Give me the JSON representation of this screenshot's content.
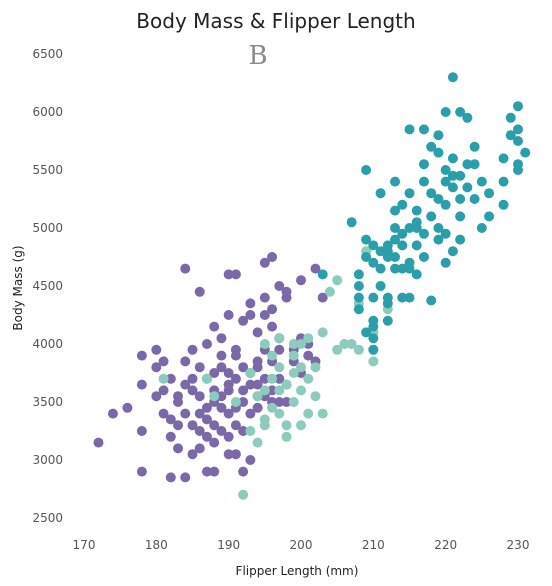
{
  "chart_data": {
    "type": "scatter",
    "title": "Body Mass & Flipper Length",
    "panel_label": "B",
    "xlabel": "Flipper Length (mm)",
    "ylabel": "Body Mass (g)",
    "xlim": [
      167,
      232
    ],
    "ylim": [
      2450,
      6550
    ],
    "xticks": [
      "170",
      "180",
      "190",
      "200",
      "210",
      "220",
      "230"
    ],
    "yticks": [
      "2500",
      "3000",
      "3500",
      "4000",
      "4500",
      "5000",
      "5500",
      "6000",
      "6500"
    ],
    "grid": false,
    "legend": "none",
    "series": [
      {
        "color": "#7b68a6",
        "points": [
          [
            172,
            3150
          ],
          [
            174,
            3400
          ],
          [
            176,
            3450
          ],
          [
            178,
            3250
          ],
          [
            178,
            3900
          ],
          [
            178,
            2900
          ],
          [
            180,
            3550
          ],
          [
            180,
            3950
          ],
          [
            181,
            3400
          ],
          [
            181,
            3850
          ],
          [
            181,
            3600
          ],
          [
            182,
            2850
          ],
          [
            182,
            3200
          ],
          [
            182,
            3700
          ],
          [
            183,
            3100
          ],
          [
            183,
            3550
          ],
          [
            184,
            4650
          ],
          [
            184,
            2850
          ],
          [
            184,
            3400
          ],
          [
            184,
            3850
          ],
          [
            185,
            3050
          ],
          [
            185,
            3600
          ],
          [
            185,
            3950
          ],
          [
            185,
            3300
          ],
          [
            186,
            4450
          ],
          [
            186,
            3100
          ],
          [
            186,
            3550
          ],
          [
            186,
            3800
          ],
          [
            187,
            3350
          ],
          [
            187,
            3700
          ],
          [
            187,
            3200
          ],
          [
            187,
            2900
          ],
          [
            188,
            3500
          ],
          [
            188,
            3300
          ],
          [
            188,
            4150
          ],
          [
            188,
            3750
          ],
          [
            188,
            2900
          ],
          [
            189,
            3450
          ],
          [
            189,
            4050
          ],
          [
            189,
            3900
          ],
          [
            189,
            3550
          ],
          [
            190,
            4600
          ],
          [
            190,
            3050
          ],
          [
            190,
            3750
          ],
          [
            190,
            3400
          ],
          [
            190,
            4250
          ],
          [
            190,
            3600
          ],
          [
            191,
            4600
          ],
          [
            191,
            3300
          ],
          [
            191,
            3700
          ],
          [
            191,
            3900
          ],
          [
            191,
            3050
          ],
          [
            191,
            3950
          ],
          [
            192,
            4200
          ],
          [
            192,
            3250
          ],
          [
            192,
            3800
          ],
          [
            192,
            3500
          ],
          [
            192,
            2900
          ],
          [
            193,
            4250
          ],
          [
            193,
            3650
          ],
          [
            193,
            3400
          ],
          [
            193,
            3000
          ],
          [
            193,
            3750
          ],
          [
            194,
            4100
          ],
          [
            194,
            3550
          ],
          [
            194,
            3850
          ],
          [
            194,
            3450
          ],
          [
            195,
            4700
          ],
          [
            195,
            4400
          ],
          [
            195,
            3700
          ],
          [
            195,
            3950
          ],
          [
            195,
            3550
          ],
          [
            196,
            4750
          ],
          [
            196,
            4150
          ],
          [
            196,
            3600
          ],
          [
            196,
            4300
          ],
          [
            196,
            3850
          ],
          [
            197,
            4500
          ],
          [
            197,
            3700
          ],
          [
            197,
            3950
          ],
          [
            197,
            3500
          ],
          [
            198,
            4400
          ],
          [
            198,
            3650
          ],
          [
            198,
            4450
          ],
          [
            199,
            3950
          ],
          [
            200,
            4050
          ],
          [
            200,
            3750
          ],
          [
            201,
            4000
          ],
          [
            202,
            4650
          ],
          [
            202,
            3850
          ],
          [
            203,
            4400
          ],
          [
            191,
            3450
          ],
          [
            183,
            3500
          ],
          [
            186,
            3400
          ],
          [
            188,
            3600
          ],
          [
            194,
            3650
          ],
          [
            190,
            3200
          ],
          [
            196,
            3500
          ],
          [
            178,
            3650
          ],
          [
            182,
            3350
          ],
          [
            185,
            3700
          ],
          [
            187,
            4000
          ],
          [
            189,
            3800
          ],
          [
            193,
            4350
          ],
          [
            195,
            4250
          ],
          [
            187,
            3450
          ],
          [
            189,
            3250
          ],
          [
            199,
            3850
          ],
          [
            200,
            4550
          ],
          [
            198,
            3500
          ],
          [
            180,
            3800
          ],
          [
            184,
            3650
          ],
          [
            186,
            3250
          ],
          [
            188,
            3150
          ],
          [
            190,
            3650
          ],
          [
            192,
            3600
          ],
          [
            194,
            3800
          ],
          [
            197,
            4050
          ],
          [
            201,
            3900
          ],
          [
            183,
            3300
          ]
        ]
      },
      {
        "color": "#8ccbbd",
        "points": [
          [
            181,
            3700
          ],
          [
            187,
            3700
          ],
          [
            188,
            3550
          ],
          [
            191,
            3500
          ],
          [
            192,
            2700
          ],
          [
            193,
            3750
          ],
          [
            194,
            3550
          ],
          [
            195,
            3350
          ],
          [
            195,
            4000
          ],
          [
            195,
            3300
          ],
          [
            196,
            3700
          ],
          [
            196,
            3900
          ],
          [
            197,
            4050
          ],
          [
            197,
            3400
          ],
          [
            197,
            3600
          ],
          [
            198,
            3650
          ],
          [
            198,
            3300
          ],
          [
            199,
            4000
          ],
          [
            199,
            3900
          ],
          [
            199,
            3750
          ],
          [
            200,
            3800
          ],
          [
            200,
            3300
          ],
          [
            201,
            3400
          ],
          [
            201,
            4050
          ],
          [
            202,
            3800
          ],
          [
            202,
            3550
          ],
          [
            203,
            4100
          ],
          [
            204,
            4450
          ],
          [
            205,
            4550
          ],
          [
            205,
            3950
          ],
          [
            206,
            4000
          ],
          [
            207,
            4000
          ],
          [
            208,
            3950
          ],
          [
            210,
            4100
          ],
          [
            210,
            3950
          ],
          [
            210,
            3850
          ],
          [
            212,
            4300
          ],
          [
            198,
            3200
          ],
          [
            196,
            3450
          ],
          [
            194,
            3150
          ],
          [
            200,
            4000
          ],
          [
            199,
            3500
          ],
          [
            197,
            3800
          ],
          [
            203,
            3400
          ],
          [
            201,
            3700
          ],
          [
            193,
            3250
          ],
          [
            195,
            3600
          ],
          [
            209,
            4800
          ],
          [
            208,
            4350
          ],
          [
            200,
            3600
          ]
        ]
      },
      {
        "color": "#2a9fa9",
        "points": [
          [
            203,
            4600
          ],
          [
            207,
            5050
          ],
          [
            208,
            4500
          ],
          [
            208,
            4400
          ],
          [
            208,
            4300
          ],
          [
            208,
            4600
          ],
          [
            209,
            4100
          ],
          [
            209,
            4900
          ],
          [
            209,
            5500
          ],
          [
            209,
            4750
          ],
          [
            210,
            4850
          ],
          [
            210,
            4150
          ],
          [
            210,
            4400
          ],
          [
            210,
            4200
          ],
          [
            210,
            4700
          ],
          [
            210,
            4050
          ],
          [
            210,
            3950
          ],
          [
            211,
            5300
          ],
          [
            211,
            4500
          ],
          [
            211,
            4800
          ],
          [
            212,
            4850
          ],
          [
            212,
            4800
          ],
          [
            212,
            4750
          ],
          [
            212,
            4400
          ],
          [
            212,
            4350
          ],
          [
            213,
            5150
          ],
          [
            213,
            4750
          ],
          [
            213,
            5000
          ],
          [
            213,
            4650
          ],
          [
            213,
            4900
          ],
          [
            213,
            5400
          ],
          [
            214,
            4850
          ],
          [
            214,
            4650
          ],
          [
            214,
            4950
          ],
          [
            214,
            5200
          ],
          [
            215,
            4700
          ],
          [
            215,
            5850
          ],
          [
            215,
            5300
          ],
          [
            215,
            4650
          ],
          [
            215,
            5000
          ],
          [
            215,
            4400
          ],
          [
            216,
            5150
          ],
          [
            216,
            5000
          ],
          [
            216,
            4600
          ],
          [
            216,
            5050
          ],
          [
            217,
            5850
          ],
          [
            217,
            5550
          ],
          [
            217,
            4950
          ],
          [
            217,
            5400
          ],
          [
            217,
            4750
          ],
          [
            218,
            5700
          ],
          [
            218,
            5300
          ],
          [
            218,
            4375
          ],
          [
            218,
            5100
          ],
          [
            219,
            5650
          ],
          [
            219,
            4900
          ],
          [
            219,
            5250
          ],
          [
            219,
            5800
          ],
          [
            220,
            5400
          ],
          [
            220,
            5200
          ],
          [
            220,
            6000
          ],
          [
            220,
            4700
          ],
          [
            220,
            4950
          ],
          [
            220,
            5500
          ],
          [
            221,
            6300
          ],
          [
            221,
            5350
          ],
          [
            221,
            4800
          ],
          [
            221,
            5450
          ],
          [
            221,
            5600
          ],
          [
            222,
            6000
          ],
          [
            222,
            5250
          ],
          [
            222,
            5100
          ],
          [
            222,
            4900
          ],
          [
            222,
            5450
          ],
          [
            223,
            5950
          ],
          [
            223,
            5550
          ],
          [
            223,
            5350
          ],
          [
            224,
            5550
          ],
          [
            224,
            5700
          ],
          [
            225,
            5400
          ],
          [
            225,
            5000
          ],
          [
            226,
            5100
          ],
          [
            228,
            5200
          ],
          [
            228,
            5600
          ],
          [
            229,
            5800
          ],
          [
            229,
            5950
          ],
          [
            230,
            5850
          ],
          [
            230,
            5550
          ],
          [
            230,
            5750
          ],
          [
            230,
            5500
          ],
          [
            230,
            6050
          ],
          [
            231,
            5650
          ],
          [
            228,
            5400
          ],
          [
            224,
            5250
          ],
          [
            216,
            4850
          ],
          [
            214,
            4400
          ],
          [
            212,
            4200
          ],
          [
            219,
            5000
          ],
          [
            226,
            5300
          ],
          [
            211,
            4650
          ]
        ]
      }
    ]
  }
}
